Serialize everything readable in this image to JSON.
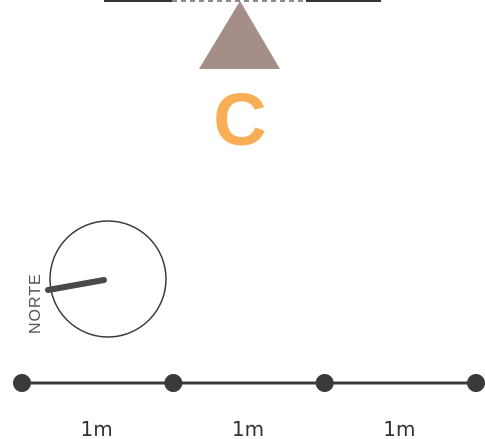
{
  "marker": {
    "letter": "C",
    "letter_color": "#f9ae55",
    "triangle_color": "#a58d88"
  },
  "top_bar": {
    "solid_color": "#3a3335",
    "dash_color": "#6b6466"
  },
  "compass": {
    "label": "NORTE",
    "needle_color": "#4a4a4a",
    "ring_color": "#3a3a3a"
  },
  "scale_bar": {
    "line_color": "#3a3a3a",
    "segments": [
      {
        "label": "1m"
      },
      {
        "label": "1m"
      },
      {
        "label": "1m"
      }
    ]
  }
}
